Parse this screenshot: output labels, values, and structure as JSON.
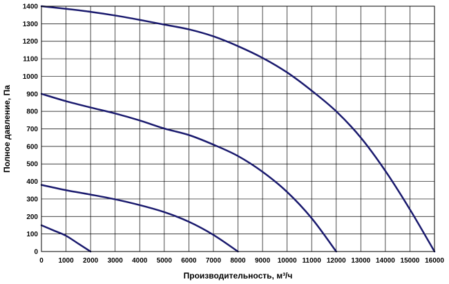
{
  "chart_data": {
    "type": "line",
    "xlabel": "Производительность, м³/ч",
    "ylabel": "Полное давление, Па",
    "xlim": [
      0,
      16000
    ],
    "ylim": [
      0,
      1400
    ],
    "x_ticks": [
      0,
      1000,
      2000,
      3000,
      4000,
      5000,
      6000,
      7000,
      8000,
      9000,
      10000,
      11000,
      12000,
      13000,
      14000,
      15000,
      16000
    ],
    "y_ticks": [
      0,
      100,
      200,
      300,
      400,
      500,
      600,
      700,
      800,
      900,
      1000,
      1100,
      1200,
      1300,
      1400
    ],
    "grid": true,
    "legend": "none",
    "line_color": "#1a1a6e",
    "series": [
      {
        "x": [
          0,
          500,
          1000,
          1500,
          2000
        ],
        "y": [
          150,
          120,
          90,
          45,
          0
        ]
      },
      {
        "x": [
          0,
          1000,
          2000,
          3000,
          4000,
          5000,
          6000,
          7000,
          8000
        ],
        "y": [
          380,
          350,
          325,
          298,
          265,
          225,
          170,
          95,
          0
        ]
      },
      {
        "x": [
          0,
          1000,
          2000,
          3000,
          4000,
          5000,
          6000,
          7000,
          8000,
          9000,
          10000,
          11000,
          12000
        ],
        "y": [
          900,
          858,
          822,
          788,
          748,
          702,
          665,
          610,
          545,
          455,
          340,
          190,
          0
        ]
      },
      {
        "x": [
          0,
          1000,
          2000,
          3000,
          4000,
          5000,
          6000,
          7000,
          8000,
          9000,
          10000,
          11000,
          12000,
          13000,
          14000,
          15000,
          16000
        ],
        "y": [
          1400,
          1385,
          1368,
          1347,
          1322,
          1295,
          1268,
          1228,
          1172,
          1105,
          1022,
          918,
          800,
          650,
          460,
          240,
          0
        ]
      }
    ]
  }
}
